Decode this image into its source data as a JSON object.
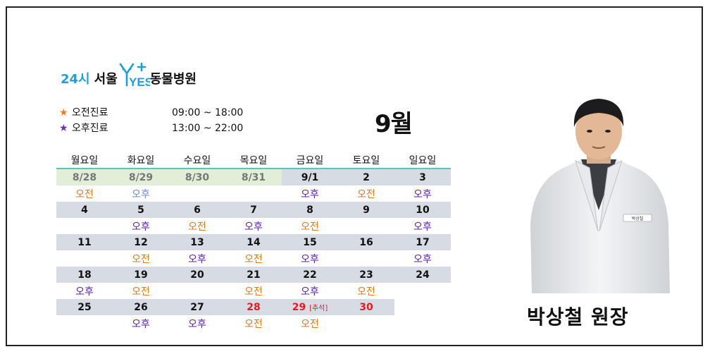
{
  "logo": {
    "prefix": "24시",
    "city": "서울",
    "brand": "YES",
    "hospital": "동물병원"
  },
  "schedule": [
    {
      "star": "★",
      "label": "오전진료",
      "time": "09:00 ~ 18:00",
      "color": "#f07d1d"
    },
    {
      "star": "★",
      "label": "오후진료",
      "time": "13:00 ~ 22:00",
      "color": "#6a2fb3"
    }
  ],
  "month": "9월",
  "weekdays": [
    "월요일",
    "화요일",
    "수요일",
    "목요일",
    "금요일",
    "토요일",
    "일요일"
  ],
  "weeks": [
    {
      "dates": [
        "8/28",
        "8/29",
        "8/30",
        "8/31",
        "9/1",
        "2",
        "3"
      ],
      "shifts": [
        "오전",
        "오후",
        "",
        "",
        "오후",
        "오전",
        "오후"
      ]
    },
    {
      "dates": [
        "4",
        "5",
        "6",
        "7",
        "8",
        "9",
        "10"
      ],
      "shifts": [
        "",
        "오후",
        "오전",
        "오후",
        "오전",
        "",
        "오후"
      ]
    },
    {
      "dates": [
        "11",
        "12",
        "13",
        "14",
        "15",
        "16",
        "17"
      ],
      "shifts": [
        "",
        "오전",
        "오후",
        "오전",
        "오후",
        "",
        "오후"
      ]
    },
    {
      "dates": [
        "18",
        "19",
        "20",
        "21",
        "22",
        "23",
        "24"
      ],
      "shifts": [
        "오후",
        "오전",
        "",
        "오전",
        "오후",
        "오전",
        ""
      ]
    },
    {
      "dates": [
        "25",
        "26",
        "27",
        "28",
        "29",
        "30",
        ""
      ],
      "shifts": [
        "",
        "오후",
        "오후",
        "오전",
        "오전",
        "",
        ""
      ]
    }
  ],
  "holiday_note": "[추석]",
  "doctor": {
    "name": "박상철 원장",
    "badge": "박상철"
  }
}
